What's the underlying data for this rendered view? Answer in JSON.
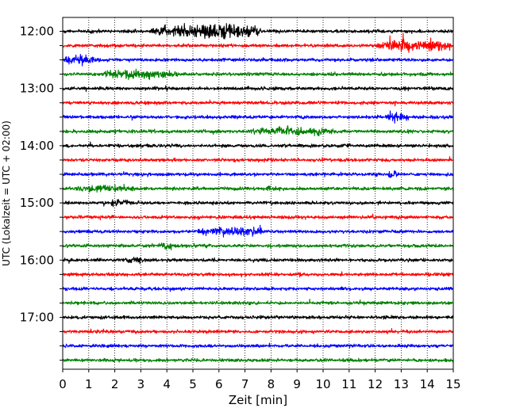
{
  "chart_data": {
    "type": "line",
    "xlabel": "Zeit  [min]",
    "ylabel": "UTC (Lokalzeit = UTC + 02:00)",
    "xlim": [
      0,
      15
    ],
    "x_ticks": [
      "0",
      "1",
      "2",
      "3",
      "4",
      "5",
      "6",
      "7",
      "8",
      "9",
      "10",
      "11",
      "12",
      "13",
      "14",
      "15"
    ],
    "y_tick_labels": [
      "12:00",
      "13:00",
      "14:00",
      "15:00",
      "16:00",
      "17:00"
    ],
    "grid": "vertical dotted lines at each minute",
    "colors": [
      "#000000",
      "#ff0000",
      "#0000ff",
      "#008000"
    ],
    "traces": [
      {
        "start": "12:00",
        "color": "#000000",
        "events": [
          {
            "from": 3.4,
            "to": 7.6,
            "amplitude": 2.6
          }
        ]
      },
      {
        "start": "12:15",
        "color": "#ff0000",
        "events": [
          {
            "from": 12.1,
            "to": 14.9,
            "amplitude": 1.9
          }
        ]
      },
      {
        "start": "12:30",
        "color": "#0000ff",
        "events": [
          {
            "from": 0.1,
            "to": 1.4,
            "amplitude": 1.3
          }
        ]
      },
      {
        "start": "12:45",
        "color": "#008000",
        "events": [
          {
            "from": 1.6,
            "to": 4.4,
            "amplitude": 1.5
          }
        ]
      },
      {
        "start": "13:00",
        "color": "#000000",
        "events": []
      },
      {
        "start": "13:15",
        "color": "#ff0000",
        "events": []
      },
      {
        "start": "13:30",
        "color": "#0000ff",
        "events": [
          {
            "from": 12.4,
            "to": 13.3,
            "amplitude": 1.4
          }
        ]
      },
      {
        "start": "13:45",
        "color": "#008000",
        "events": [
          {
            "from": 7.2,
            "to": 10.4,
            "amplitude": 1.3
          }
        ]
      },
      {
        "start": "14:00",
        "color": "#000000",
        "events": []
      },
      {
        "start": "14:15",
        "color": "#ff0000",
        "events": []
      },
      {
        "start": "14:30",
        "color": "#0000ff",
        "events": [
          {
            "from": 12.5,
            "to": 12.9,
            "amplitude": 1.3
          }
        ]
      },
      {
        "start": "14:45",
        "color": "#008000",
        "events": [
          {
            "from": 0.5,
            "to": 2.8,
            "amplitude": 0.9
          },
          {
            "from": 7.8,
            "to": 8.0,
            "amplitude": 1.0
          }
        ]
      },
      {
        "start": "15:00",
        "color": "#000000",
        "events": [
          {
            "from": 1.8,
            "to": 2.5,
            "amplitude": 0.9
          }
        ]
      },
      {
        "start": "15:15",
        "color": "#ff0000",
        "events": []
      },
      {
        "start": "15:30",
        "color": "#0000ff",
        "events": [
          {
            "from": 5.2,
            "to": 7.7,
            "amplitude": 1.3
          }
        ]
      },
      {
        "start": "15:45",
        "color": "#008000",
        "events": [
          {
            "from": 3.7,
            "to": 4.2,
            "amplitude": 1.0
          }
        ]
      },
      {
        "start": "16:00",
        "color": "#000000",
        "events": [
          {
            "from": 2.4,
            "to": 3.2,
            "amplitude": 0.9
          }
        ]
      },
      {
        "start": "16:15",
        "color": "#ff0000",
        "events": []
      },
      {
        "start": "16:30",
        "color": "#0000ff",
        "events": []
      },
      {
        "start": "16:45",
        "color": "#008000",
        "events": []
      },
      {
        "start": "17:00",
        "color": "#000000",
        "events": []
      },
      {
        "start": "17:15",
        "color": "#ff0000",
        "events": []
      },
      {
        "start": "17:30",
        "color": "#0000ff",
        "events": []
      },
      {
        "start": "17:45",
        "color": "#008000",
        "events": []
      }
    ]
  }
}
